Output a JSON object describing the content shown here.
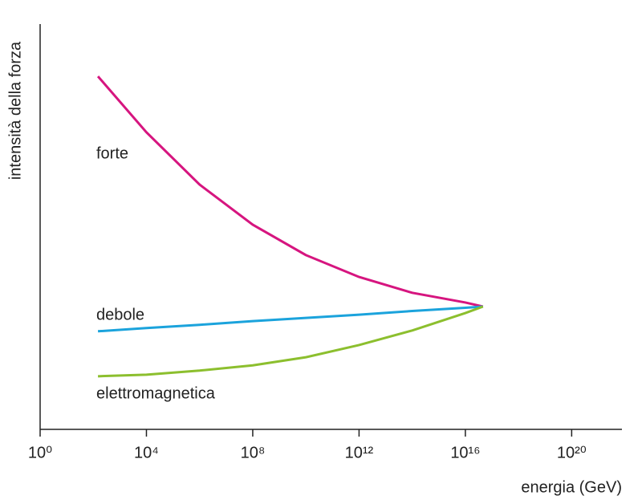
{
  "chart_data": {
    "type": "line",
    "x_label": "energia (GeV)",
    "y_label": "intensità della forza",
    "log_x": true,
    "x": [
      150,
      10000,
      1000000,
      100000000,
      10000000000,
      1000000000000,
      100000000000000,
      10000000000000000,
      46000000000000000
    ],
    "series": [
      {
        "name": "forte",
        "color": "#d6157f",
        "values": [
          87.1,
          73.3,
          60.4,
          50.5,
          43.0,
          37.6,
          33.7,
          31.3,
          30.3
        ]
      },
      {
        "name": "debole",
        "color": "#1ba3dc",
        "values": [
          24.2,
          25.0,
          25.8,
          26.7,
          27.5,
          28.3,
          29.2,
          30.0,
          30.3
        ]
      },
      {
        "name": "elettromagnetica",
        "color": "#8cbf2e",
        "values": [
          13.1,
          13.5,
          14.5,
          15.8,
          17.8,
          20.8,
          24.4,
          28.7,
          30.3
        ]
      }
    ],
    "xlim": [
      1,
      10000000000000000000000
    ],
    "xticks": [
      {
        "value": 1,
        "label": "10⁰"
      },
      {
        "value": 10000,
        "label": "10⁴"
      },
      {
        "value": 100000000,
        "label": "10⁸"
      },
      {
        "value": 1000000000000,
        "label": "10¹²"
      },
      {
        "value": 10000000000000000,
        "label": "10¹⁶"
      },
      {
        "value": 100000000000000000000,
        "label": "10²⁰"
      }
    ],
    "ylim": [
      0,
      100
    ]
  }
}
